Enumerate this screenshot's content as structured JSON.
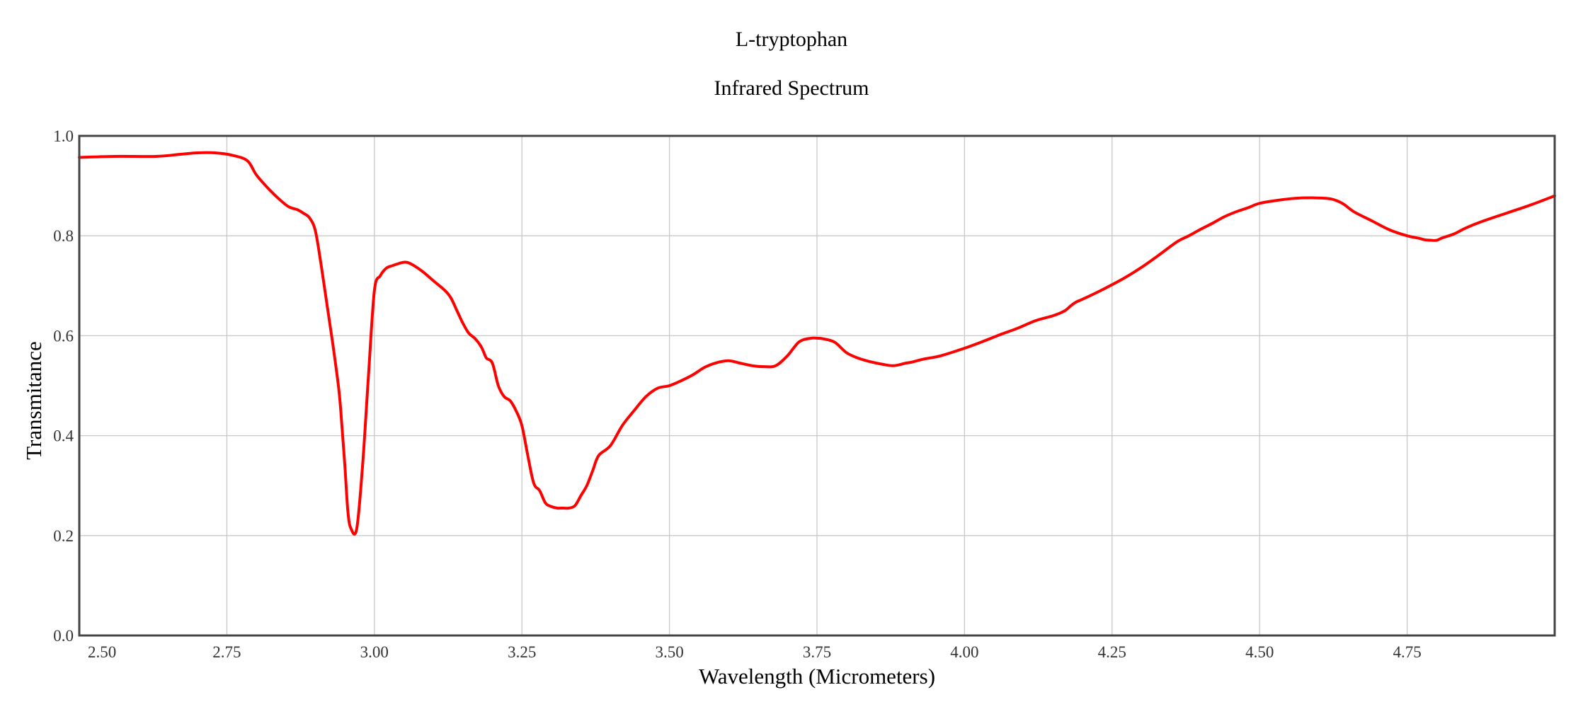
{
  "chart_data": {
    "type": "line",
    "title": "L-tryptophan",
    "subtitle": "Infrared Spectrum",
    "xlabel": "Wavelength (Micrometers)",
    "ylabel": "Transmitance",
    "xlim": [
      2.5,
      5.0
    ],
    "ylim": [
      0.0,
      1.0
    ],
    "x_ticks": [
      "2.50",
      "2.75",
      "3.00",
      "3.25",
      "3.50",
      "3.75",
      "4.00",
      "4.25",
      "4.50",
      "4.75"
    ],
    "y_ticks": [
      "0.0",
      "0.2",
      "0.4",
      "0.6",
      "0.8",
      "1.0"
    ],
    "grid": true,
    "series": [
      {
        "color": "#ff0000",
        "x": [
          2.5,
          2.56,
          2.63,
          2.67,
          2.7,
          2.73,
          2.76,
          2.785,
          2.8,
          2.82,
          2.84,
          2.855,
          2.87,
          2.88,
          2.89,
          2.9,
          2.91,
          2.92,
          2.93,
          2.94,
          2.945,
          2.95,
          2.955,
          2.96,
          2.97,
          2.98,
          2.99,
          3.0,
          3.01,
          3.02,
          3.03,
          3.04,
          3.05,
          3.06,
          3.08,
          3.1,
          3.12,
          3.13,
          3.14,
          3.15,
          3.16,
          3.17,
          3.18,
          3.185,
          3.19,
          3.2,
          3.21,
          3.22,
          3.23,
          3.24,
          3.25,
          3.26,
          3.27,
          3.28,
          3.29,
          3.3,
          3.31,
          3.32,
          3.33,
          3.34,
          3.35,
          3.36,
          3.37,
          3.38,
          3.4,
          3.42,
          3.44,
          3.46,
          3.48,
          3.5,
          3.52,
          3.54,
          3.56,
          3.58,
          3.6,
          3.62,
          3.64,
          3.66,
          3.68,
          3.7,
          3.72,
          3.74,
          3.75,
          3.76,
          3.78,
          3.8,
          3.82,
          3.84,
          3.86,
          3.88,
          3.9,
          3.91,
          3.93,
          3.96,
          4.0,
          4.03,
          4.06,
          4.09,
          4.12,
          4.15,
          4.17,
          4.18,
          4.19,
          4.2,
          4.23,
          4.27,
          4.3,
          4.33,
          4.36,
          4.38,
          4.4,
          4.42,
          4.44,
          4.46,
          4.48,
          4.5,
          4.53,
          4.56,
          4.59,
          4.62,
          4.64,
          4.66,
          4.69,
          4.72,
          4.75,
          4.77,
          4.78,
          4.79,
          4.8,
          4.81,
          4.83,
          4.85,
          4.88,
          4.92,
          4.96,
          5.0
        ],
        "values": [
          0.957,
          0.959,
          0.959,
          0.963,
          0.966,
          0.966,
          0.961,
          0.95,
          0.922,
          0.895,
          0.872,
          0.858,
          0.852,
          0.845,
          0.836,
          0.81,
          0.74,
          0.66,
          0.58,
          0.49,
          0.42,
          0.34,
          0.25,
          0.215,
          0.213,
          0.34,
          0.52,
          0.69,
          0.72,
          0.735,
          0.74,
          0.744,
          0.747,
          0.745,
          0.73,
          0.71,
          0.69,
          0.675,
          0.65,
          0.625,
          0.605,
          0.595,
          0.58,
          0.568,
          0.555,
          0.545,
          0.5,
          0.478,
          0.47,
          0.45,
          0.42,
          0.36,
          0.305,
          0.29,
          0.265,
          0.258,
          0.255,
          0.255,
          0.255,
          0.26,
          0.28,
          0.3,
          0.33,
          0.36,
          0.38,
          0.42,
          0.45,
          0.478,
          0.495,
          0.5,
          0.51,
          0.522,
          0.537,
          0.546,
          0.55,
          0.545,
          0.54,
          0.538,
          0.54,
          0.56,
          0.588,
          0.595,
          0.595,
          0.594,
          0.587,
          0.566,
          0.555,
          0.548,
          0.543,
          0.54,
          0.545,
          0.547,
          0.553,
          0.56,
          0.575,
          0.588,
          0.602,
          0.615,
          0.63,
          0.64,
          0.65,
          0.66,
          0.668,
          0.673,
          0.69,
          0.715,
          0.737,
          0.762,
          0.788,
          0.8,
          0.813,
          0.825,
          0.838,
          0.848,
          0.856,
          0.865,
          0.871,
          0.875,
          0.876,
          0.874,
          0.865,
          0.848,
          0.83,
          0.812,
          0.8,
          0.795,
          0.792,
          0.791,
          0.791,
          0.796,
          0.804,
          0.816,
          0.83,
          0.846,
          0.862,
          0.88
        ]
      }
    ]
  }
}
